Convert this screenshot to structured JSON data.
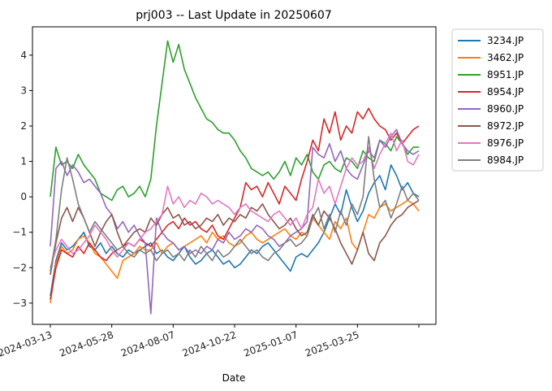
{
  "chart_data": {
    "type": "line",
    "title": "prj003 -- Last Update in 20250607",
    "xlabel": "Date",
    "ylabel": "",
    "x_tick_labels": [
      "2024-03-13",
      "2024-05-28",
      "2024-08-07",
      "2024-10-22",
      "2025-01-07",
      "2025-03-25"
    ],
    "ylim": [
      -3.6,
      4.8
    ],
    "y_ticks": [
      "−3",
      "−2",
      "−1",
      "0",
      "1",
      "2",
      "3",
      "4"
    ],
    "grid": false,
    "legend_position": "outside-top-right",
    "series": [
      {
        "name": "3234.JP",
        "color": "#1f77b4",
        "values": [
          -2.8,
          -1.8,
          -1.3,
          -1.5,
          -1.4,
          -1.2,
          -1.0,
          -1.4,
          -1.5,
          -1.3,
          -1.6,
          -1.4,
          -1.6,
          -1.7,
          -1.5,
          -1.6,
          -1.5,
          -1.4,
          -1.3,
          -1.6,
          -1.5,
          -1.7,
          -1.8,
          -1.6,
          -1.4,
          -1.7,
          -1.9,
          -1.8,
          -1.6,
          -1.5,
          -1.7,
          -1.9,
          -1.8,
          -2.0,
          -1.9,
          -1.7,
          -1.5,
          -1.6,
          -1.4,
          -1.3,
          -1.5,
          -1.7,
          -1.9,
          -2.1,
          -1.7,
          -1.6,
          -1.7,
          -1.5,
          -1.3,
          -1.0,
          -0.6,
          -0.2,
          -0.5,
          0.2,
          -0.3,
          -0.7,
          -0.4,
          0.1,
          0.4,
          0.6,
          0.2,
          0.9,
          0.6,
          0.2,
          0.4,
          0.1,
          0.0
        ]
      },
      {
        "name": "3462.JP",
        "color": "#ff7f0e",
        "values": [
          -3.0,
          -1.9,
          -1.4,
          -1.6,
          -1.5,
          -1.2,
          -1.1,
          -1.3,
          -1.6,
          -1.7,
          -1.9,
          -2.1,
          -2.3,
          -1.8,
          -1.7,
          -1.6,
          -1.4,
          -1.5,
          -1.5,
          -1.3,
          -1.6,
          -1.4,
          -1.3,
          -1.5,
          -1.4,
          -1.3,
          -1.2,
          -1.1,
          -1.3,
          -1.0,
          -1.2,
          -1.1,
          -1.3,
          -1.4,
          -1.3,
          -1.1,
          -1.0,
          -1.2,
          -1.3,
          -1.2,
          -1.1,
          -1.0,
          -0.9,
          -1.1,
          -1.2,
          -1.0,
          -1.1,
          -0.6,
          -0.8,
          -1.0,
          -1.2,
          -0.7,
          -0.9,
          -0.6,
          -1.3,
          -1.5,
          -1.0,
          -0.5,
          -0.6,
          -0.3,
          -0.2,
          -0.4,
          -0.3,
          -0.2,
          -0.1,
          -0.2,
          -0.4
        ]
      },
      {
        "name": "8951.JP",
        "color": "#2ca02c",
        "values": [
          0.0,
          1.4,
          0.9,
          1.0,
          0.8,
          1.2,
          0.9,
          0.7,
          0.5,
          0.1,
          0.0,
          -0.1,
          0.2,
          0.3,
          0.0,
          0.1,
          0.3,
          0.0,
          0.5,
          2.0,
          3.2,
          4.4,
          3.8,
          4.3,
          3.6,
          3.2,
          2.8,
          2.5,
          2.2,
          2.1,
          1.9,
          1.8,
          1.8,
          1.6,
          1.3,
          1.1,
          0.8,
          0.7,
          0.6,
          0.7,
          0.5,
          0.7,
          1.0,
          0.6,
          1.1,
          0.9,
          1.2,
          0.7,
          0.5,
          0.9,
          1.0,
          0.8,
          0.7,
          1.1,
          1.0,
          0.8,
          1.3,
          1.1,
          1.0,
          1.6,
          1.5,
          1.3,
          1.7,
          1.5,
          1.2,
          1.4,
          1.4
        ]
      },
      {
        "name": "8954.JP",
        "color": "#d62728",
        "values": [
          -2.9,
          -2.0,
          -1.5,
          -1.6,
          -1.7,
          -1.4,
          -1.6,
          -1.3,
          -1.5,
          -1.7,
          -1.8,
          -1.6,
          -1.5,
          -1.4,
          -1.3,
          -1.4,
          -1.2,
          -1.3,
          -1.4,
          -1.2,
          -1.0,
          -0.8,
          -0.7,
          -0.9,
          -0.6,
          -0.8,
          -0.7,
          -0.9,
          -1.0,
          -0.8,
          -1.1,
          -1.2,
          -0.9,
          -0.6,
          -0.3,
          0.4,
          0.2,
          0.3,
          0.0,
          0.4,
          0.1,
          -0.2,
          0.3,
          0.1,
          -0.1,
          0.5,
          1.0,
          1.6,
          1.3,
          2.2,
          1.8,
          2.4,
          1.6,
          2.0,
          1.8,
          2.4,
          2.2,
          2.5,
          2.2,
          2.0,
          1.9,
          1.6,
          1.8,
          1.5,
          1.7,
          1.9,
          2.0
        ]
      },
      {
        "name": "8960.JP",
        "color": "#9467bd",
        "values": [
          -1.4,
          0.8,
          1.0,
          0.6,
          0.9,
          0.7,
          0.4,
          0.5,
          0.3,
          0.1,
          -0.3,
          -0.5,
          -0.9,
          -0.7,
          -1.0,
          -0.8,
          -1.1,
          -1.3,
          -3.3,
          -0.6,
          -1.0,
          -1.2,
          -1.3,
          -1.5,
          -1.4,
          -1.6,
          -1.5,
          -1.6,
          -1.4,
          -1.5,
          -1.2,
          -1.3,
          -1.0,
          -1.2,
          -1.1,
          -0.9,
          -1.0,
          -0.8,
          -0.9,
          -1.1,
          -1.2,
          -1.4,
          -1.3,
          -1.1,
          -1.0,
          -0.9,
          -0.7,
          1.4,
          1.2,
          1.1,
          1.5,
          1.0,
          1.3,
          0.8,
          0.6,
          0.5,
          0.9,
          1.3,
          1.1,
          1.6,
          1.4,
          1.7,
          1.9,
          1.5,
          1.3,
          1.2,
          1.3
        ]
      },
      {
        "name": "8972.JP",
        "color": "#8c564b",
        "values": [
          -2.2,
          -1.3,
          -0.6,
          -0.3,
          -0.7,
          -0.3,
          -0.6,
          -1.0,
          -1.4,
          -1.0,
          -0.7,
          -0.5,
          -1.0,
          -1.4,
          -1.2,
          -1.0,
          -0.9,
          -1.0,
          -0.6,
          -0.8,
          -0.5,
          -0.3,
          -0.6,
          -0.5,
          -0.8,
          -0.7,
          -0.9,
          -0.8,
          -0.6,
          -0.7,
          -0.5,
          -0.8,
          -0.6,
          -0.7,
          -0.5,
          -0.6,
          -0.3,
          -0.4,
          -0.2,
          -0.5,
          -0.7,
          -0.9,
          -0.8,
          -0.6,
          -0.9,
          -1.1,
          -1.0,
          -0.5,
          -0.8,
          -0.4,
          -0.6,
          -0.9,
          -1.3,
          -1.6,
          -1.9,
          -1.5,
          -1.0,
          -1.6,
          -1.8,
          -1.3,
          -1.1,
          -0.8,
          -0.6,
          -0.5,
          -0.3,
          -0.2,
          -0.1
        ]
      },
      {
        "name": "8976.JP",
        "color": "#e377c2",
        "values": [
          -2.0,
          -1.5,
          -1.2,
          -1.4,
          -1.6,
          -1.5,
          -1.3,
          -1.1,
          -0.8,
          -1.0,
          -1.2,
          -1.5,
          -1.7,
          -1.5,
          -1.3,
          -1.4,
          -1.2,
          -1.0,
          -0.9,
          -0.7,
          -0.5,
          0.3,
          -0.2,
          0.0,
          -0.3,
          -0.1,
          -0.2,
          0.1,
          0.0,
          -0.2,
          -0.1,
          -0.2,
          -0.3,
          -0.5,
          -0.3,
          -0.2,
          -0.4,
          -0.5,
          -0.6,
          -0.7,
          -0.5,
          -0.4,
          -0.6,
          -0.8,
          -0.6,
          -0.9,
          -0.5,
          -0.3,
          0.5,
          0.1,
          0.3,
          -0.2,
          0.3,
          0.8,
          1.1,
          0.9,
          1.0,
          1.4,
          0.8,
          1.2,
          1.5,
          1.8,
          1.3,
          1.6,
          1.0,
          0.9,
          1.2
        ]
      },
      {
        "name": "8984.JP",
        "color": "#7f7f7f",
        "values": [
          -2.1,
          -1.2,
          0.2,
          1.1,
          0.5,
          -0.2,
          -0.6,
          -1.0,
          -0.7,
          -0.9,
          -1.1,
          -1.3,
          -1.5,
          -1.4,
          -1.6,
          -1.7,
          -1.5,
          -1.6,
          -1.5,
          -1.8,
          -1.6,
          -1.5,
          -1.7,
          -1.6,
          -1.8,
          -1.5,
          -1.7,
          -1.4,
          -1.6,
          -1.8,
          -1.5,
          -1.7,
          -1.6,
          -1.4,
          -1.2,
          -1.4,
          -1.6,
          -1.5,
          -1.7,
          -1.8,
          -1.6,
          -1.5,
          -1.3,
          -1.2,
          -1.4,
          -1.3,
          -1.1,
          -0.6,
          -0.3,
          -0.9,
          -0.5,
          -1.0,
          -0.4,
          -0.8,
          -0.2,
          -0.5,
          0.0,
          1.7,
          0.5,
          -0.3,
          -0.1,
          -0.6,
          -0.2,
          0.3,
          -0.1,
          0.1,
          -0.1
        ]
      }
    ]
  }
}
